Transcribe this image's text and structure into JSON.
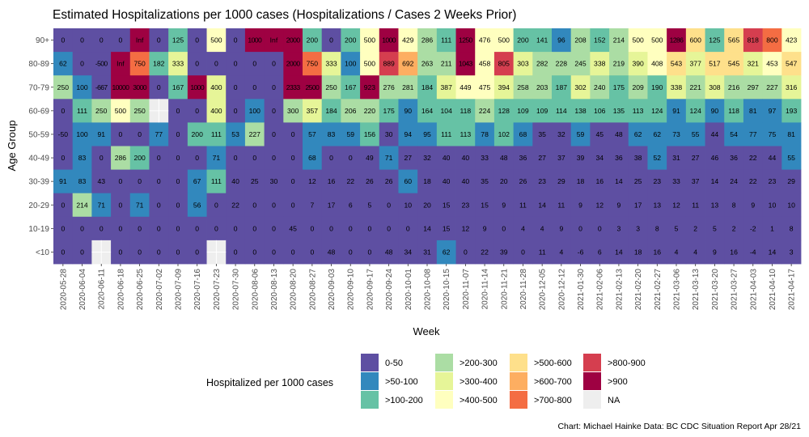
{
  "chart_data": {
    "type": "heatmap",
    "title": "Estimated Hospitalizations per 1000 cases (Hospitalizations / Cases 2 Weeks Prior)",
    "xlabel": "Week",
    "ylabel": "Age Group",
    "x": [
      "2020-05-28",
      "2020-06-04",
      "2020-06-11",
      "2020-06-18",
      "2020-06-25",
      "2020-07-02",
      "2020-07-09",
      "2020-07-16",
      "2020-07-23",
      "2020-07-30",
      "2020-08-06",
      "2020-08-13",
      "2020-08-20",
      "2020-08-27",
      "2020-09-03",
      "2020-09-10",
      "2020-09-17",
      "2020-09-24",
      "2020-10-01",
      "2020-10-08",
      "2020-10-15",
      "2020-11-07",
      "2020-11-14",
      "2020-11-21",
      "2020-11-28",
      "2020-12-05",
      "2020-12-12",
      "2021-01-30",
      "2021-02-06",
      "2021-02-13",
      "2021-02-20",
      "2021-02-27",
      "2021-03-06",
      "2021-03-13",
      "2021-03-20",
      "2021-03-27",
      "2021-04-03",
      "2021-04-10",
      "2021-04-17"
    ],
    "y": [
      "90+",
      "80-89",
      "70-79",
      "60-69",
      "50-59",
      "40-49",
      "30-39",
      "20-29",
      "10-19",
      "<10"
    ],
    "values": [
      [
        "0",
        "0",
        "0",
        "0",
        "Inf",
        "0",
        "125",
        "0",
        "500",
        "0",
        "1000",
        "Inf",
        "2000",
        "200",
        "0",
        "200",
        "500",
        "1000",
        "429",
        "286",
        "111",
        "1250",
        "476",
        "500",
        "200",
        "141",
        "96",
        "208",
        "152",
        "214",
        "500",
        "500",
        "1286",
        "600",
        "125",
        "565",
        "818",
        "800",
        "423"
      ],
      [
        "62",
        "0",
        "-500",
        "Inf",
        "750",
        "182",
        "333",
        "0",
        "0",
        "0",
        "0",
        "0",
        "2000",
        "750",
        "333",
        "100",
        "500",
        "889",
        "692",
        "263",
        "211",
        "1043",
        "458",
        "805",
        "303",
        "282",
        "228",
        "245",
        "338",
        "219",
        "390",
        "408",
        "543",
        "377",
        "517",
        "545",
        "321",
        "453",
        "547"
      ],
      [
        "250",
        "100",
        "-667",
        "10000",
        "3000",
        "0",
        "167",
        "1000",
        "400",
        "0",
        "0",
        "0",
        "2333",
        "2500",
        "250",
        "167",
        "923",
        "276",
        "281",
        "184",
        "387",
        "449",
        "475",
        "394",
        "258",
        "203",
        "187",
        "302",
        "240",
        "175",
        "209",
        "190",
        "338",
        "221",
        "308",
        "216",
        "297",
        "227",
        "316"
      ],
      [
        "0",
        "111",
        "250",
        "500",
        "250",
        "NA",
        "0",
        "0",
        "400",
        "0",
        "100",
        "0",
        "300",
        "357",
        "184",
        "206",
        "220",
        "175",
        "90",
        "164",
        "104",
        "118",
        "224",
        "128",
        "109",
        "109",
        "114",
        "138",
        "106",
        "135",
        "113",
        "124",
        "91",
        "124",
        "90",
        "118",
        "81",
        "97",
        "193"
      ],
      [
        "-50",
        "100",
        "91",
        "0",
        "0",
        "77",
        "0",
        "200",
        "111",
        "53",
        "227",
        "0",
        "0",
        "57",
        "83",
        "59",
        "156",
        "30",
        "94",
        "95",
        "111",
        "113",
        "78",
        "102",
        "68",
        "35",
        "32",
        "59",
        "45",
        "48",
        "62",
        "62",
        "73",
        "55",
        "44",
        "54",
        "77",
        "75",
        "81"
      ],
      [
        "0",
        "83",
        "0",
        "286",
        "200",
        "0",
        "0",
        "0",
        "71",
        "0",
        "0",
        "0",
        "0",
        "68",
        "0",
        "0",
        "49",
        "71",
        "27",
        "32",
        "40",
        "40",
        "33",
        "48",
        "36",
        "27",
        "37",
        "39",
        "34",
        "36",
        "38",
        "52",
        "31",
        "27",
        "46",
        "36",
        "22",
        "44",
        "55"
      ],
      [
        "91",
        "83",
        "43",
        "0",
        "0",
        "0",
        "0",
        "67",
        "111",
        "40",
        "25",
        "30",
        "0",
        "12",
        "16",
        "22",
        "26",
        "26",
        "60",
        "18",
        "40",
        "40",
        "35",
        "20",
        "26",
        "23",
        "29",
        "18",
        "16",
        "14",
        "25",
        "23",
        "33",
        "37",
        "14",
        "24",
        "22",
        "23",
        "29"
      ],
      [
        "0",
        "214",
        "71",
        "0",
        "71",
        "0",
        "0",
        "56",
        "0",
        "22",
        "0",
        "0",
        "0",
        "7",
        "17",
        "6",
        "5",
        "0",
        "10",
        "20",
        "15",
        "23",
        "15",
        "9",
        "11",
        "14",
        "11",
        "9",
        "12",
        "9",
        "17",
        "13",
        "12",
        "11",
        "13",
        "8",
        "9",
        "10",
        "10"
      ],
      [
        "0",
        "0",
        "0",
        "0",
        "0",
        "0",
        "0",
        "0",
        "0",
        "0",
        "0",
        "0",
        "45",
        "0",
        "0",
        "0",
        "0",
        "0",
        "0",
        "14",
        "15",
        "12",
        "9",
        "0",
        "4",
        "4",
        "9",
        "0",
        "0",
        "3",
        "3",
        "8",
        "5",
        "2",
        "5",
        "2",
        "-2",
        "1",
        "8"
      ],
      [
        "0",
        "0",
        "NA",
        "0",
        "0",
        "0",
        "0",
        "0",
        "NA",
        "0",
        "0",
        "0",
        "0",
        "0",
        "48",
        "0",
        "0",
        "48",
        "34",
        "31",
        "62",
        "0",
        "22",
        "39",
        "0",
        "11",
        "4",
        "-6",
        "6",
        "14",
        "18",
        "16",
        "4",
        "4",
        "9",
        "16",
        "-4",
        "14",
        "3"
      ]
    ],
    "legend": {
      "title": "Hospitalized per 1000 cases",
      "entries": [
        {
          "label": "0-50",
          "color": "#5E4FA2"
        },
        {
          "label": ">50-100",
          "color": "#3288BD"
        },
        {
          "label": ">100-200",
          "color": "#66C2A5"
        },
        {
          "label": ">200-300",
          "color": "#ABDDA4"
        },
        {
          "label": ">300-400",
          "color": "#E6F598"
        },
        {
          "label": ">400-500",
          "color": "#FFFFBF"
        },
        {
          "label": ">500-600",
          "color": "#FEE08B"
        },
        {
          "label": ">600-700",
          "color": "#FDAE61"
        },
        {
          "label": ">700-800",
          "color": "#F46D43"
        },
        {
          "label": ">800-900",
          "color": "#D53E4F"
        },
        {
          "label": ">900",
          "color": "#9E0142"
        },
        {
          "label": "NA",
          "color": "#EEEEEE"
        }
      ],
      "position": "bottom"
    },
    "grid": true
  },
  "caption": "Chart: Michael Hainke Data: BC CDC Situation Report Apr 28/21"
}
